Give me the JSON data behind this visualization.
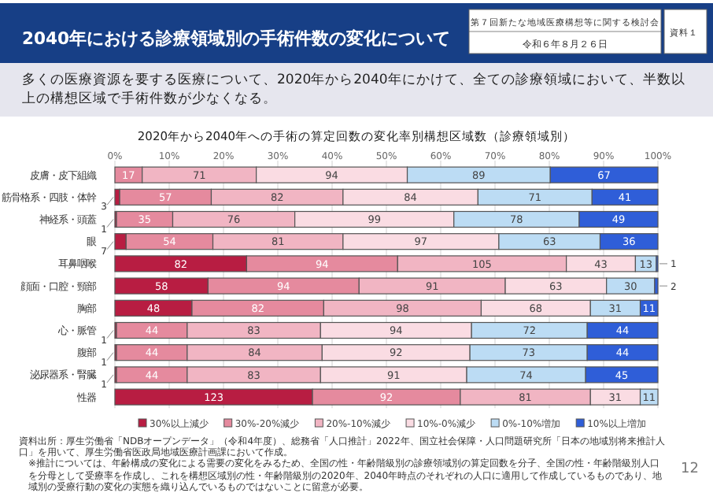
{
  "chart_data": {
    "type": "bar",
    "orientation": "horizontal",
    "stacked": true,
    "title": "2040年における診療領域別の手術件数の変化について",
    "subtitle": "2020年から2040年への手術の算定回数の変化率別構想区域数（診療領域別）",
    "categories": [
      "皮膚・皮下組織",
      "筋骨格系・四肢・体幹",
      "神経系・頭蓋",
      "眼",
      "耳鼻咽喉",
      "顔面・口腔・頸部",
      "胸部",
      "心・脈管",
      "腹部",
      "泌尿器系・腎臓",
      "性器"
    ],
    "series": [
      {
        "name": "30%以上減少",
        "color": "#b81d42",
        "values": [
          null,
          3,
          1,
          7,
          82,
          58,
          48,
          1,
          1,
          1,
          123
        ]
      },
      {
        "name": "30%-20%減少",
        "color": "#e58a9e",
        "values": [
          17,
          57,
          35,
          54,
          94,
          94,
          82,
          44,
          44,
          44,
          92
        ]
      },
      {
        "name": "20%-10%減少",
        "color": "#f1b5c3",
        "values": [
          71,
          82,
          76,
          81,
          105,
          91,
          98,
          83,
          84,
          83,
          81
        ]
      },
      {
        "name": "10%-0%減少",
        "color": "#fadce3",
        "values": [
          94,
          84,
          99,
          97,
          43,
          63,
          68,
          94,
          92,
          91,
          31
        ]
      },
      {
        "name": "0%-10%増加",
        "color": "#bcdcf4",
        "values": [
          89,
          71,
          78,
          63,
          13,
          30,
          31,
          72,
          73,
          74,
          11
        ]
      },
      {
        "name": "10%以上増加",
        "color": "#2f5ed8",
        "values": [
          67,
          41,
          49,
          36,
          1,
          2,
          11,
          44,
          44,
          45,
          null
        ]
      }
    ],
    "xlim": [
      0,
      338
    ],
    "x2lim": [
      0,
      100
    ],
    "x2ticks": [
      {
        "value": 0,
        "label": "0%"
      },
      {
        "value": 10,
        "label": "10%"
      },
      {
        "value": 20,
        "label": "20%"
      },
      {
        "value": 30,
        "label": "30%"
      },
      {
        "value": 40,
        "label": "40%"
      },
      {
        "value": 50,
        "label": "50%"
      },
      {
        "value": 60,
        "label": "60%"
      },
      {
        "value": 70,
        "label": "70%"
      },
      {
        "value": 80,
        "label": "80%"
      },
      {
        "value": 90,
        "label": "90%"
      },
      {
        "value": 100,
        "label": "100%"
      }
    ],
    "grid": "x",
    "legend": "bottom",
    "data_labels": true,
    "annotations": [
      "多くの医療資源を要する医療について、2020年から2040年にかけて、全ての診療領域において、半数以上の構想区域で手術件数が少なくなる。",
      "第７回新たな地域医療構想等に関する検討会",
      "令和６年８月２６日",
      "資料１",
      "資料出所：厚生労働省「NDBオープンデータ」（令和4年度）、総務省「人口推計」2022年、国立社会保障・人口問題研究所「日本の地域別将来推計人口」を用いて、厚生労働省医政局地域医療計画課において作成。",
      "※推計については、年齢構成の変化による需要の変化をみるため、全国の性・年齢階級別の診療領域別の算定回数を分子、全国の性・年齢階級別人口を分母として受療率を作成し、これを構想区域別の性・年齢階級別の2020年、2040年時点のそれぞれの人口に適用して作成しているものであり、地域別の受療行動の変化の実態を織り込んでいるものではないことに留意が必要。",
      "12"
    ]
  }
}
